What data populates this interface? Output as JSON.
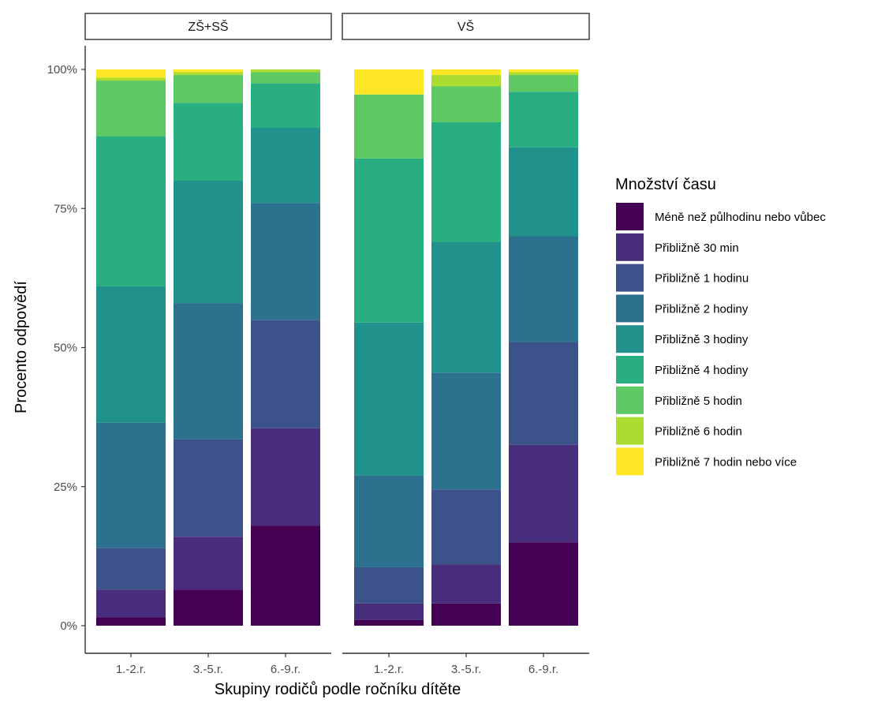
{
  "chart_data": {
    "type": "bar",
    "stacked": true,
    "percent": true,
    "xlabel": "Skupiny rodičů podle ročníku dítěte",
    "ylabel": "Procento odpovědí",
    "ylim": [
      0,
      1
    ],
    "yticks": [
      {
        "value": 0,
        "label": "0%"
      },
      {
        "value": 0.25,
        "label": "25%"
      },
      {
        "value": 0.5,
        "label": "50%"
      },
      {
        "value": 0.75,
        "label": "75%"
      },
      {
        "value": 1,
        "label": "100%"
      }
    ],
    "grid": false,
    "legend": {
      "title": "Množství času",
      "placement": "right",
      "entries": [
        {
          "label": "Méně než půlhodinu nebo vůbec",
          "color": "#440154"
        },
        {
          "label": "Přibližně 30 min",
          "color": "#472d7b"
        },
        {
          "label": "Přibližně 1 hodinu",
          "color": "#3b528b"
        },
        {
          "label": "Přibližně 2 hodiny",
          "color": "#2c728e"
        },
        {
          "label": "Přibližně 3 hodiny",
          "color": "#21918c"
        },
        {
          "label": "Přibližně 4 hodiny",
          "color": "#28ae80"
        },
        {
          "label": "Přibližně 5 hodin",
          "color": "#5ec962"
        },
        {
          "label": "Přibližně 6 hodin",
          "color": "#addc30"
        },
        {
          "label": "Přibližně 7 hodin nebo více",
          "color": "#fde725"
        }
      ]
    },
    "panels": [
      {
        "label": "ZŠ+SŠ",
        "categories": [
          "1.-2.r.",
          "3.-5.r.",
          "6.-9.r."
        ],
        "stacks_bottom_to_top": [
          [
            0.015,
            0.05,
            0.075,
            0.225,
            0.245,
            0.27,
            0.1,
            0.005,
            0.015
          ],
          [
            0.065,
            0.095,
            0.175,
            0.245,
            0.22,
            0.14,
            0.05,
            0.005,
            0.005
          ],
          [
            0.18,
            0.175,
            0.195,
            0.21,
            0.135,
            0.08,
            0.02,
            0.005,
            0.0
          ]
        ]
      },
      {
        "label": "VŠ",
        "categories": [
          "1.-2.r.",
          "3.-5.r.",
          "6.-9.r."
        ],
        "stacks_bottom_to_top": [
          [
            0.01,
            0.03,
            0.065,
            0.165,
            0.275,
            0.295,
            0.115,
            0.0,
            0.045
          ],
          [
            0.04,
            0.07,
            0.135,
            0.21,
            0.235,
            0.215,
            0.065,
            0.02,
            0.01
          ],
          [
            0.15,
            0.175,
            0.185,
            0.19,
            0.16,
            0.1,
            0.03,
            0.005,
            0.005
          ]
        ]
      }
    ]
  }
}
